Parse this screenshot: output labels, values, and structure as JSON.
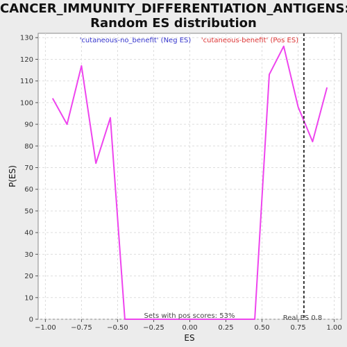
{
  "chart_data": {
    "type": "line",
    "title_lines": [
      "CANCER_IMMUNITY_DIFFERENTIATION_ANTIGENS:",
      "Random ES distribution"
    ],
    "xlabel": "ES",
    "ylabel": "P(ES)",
    "xlim": [
      -1.05,
      1.05
    ],
    "ylim": [
      0,
      132
    ],
    "xticks": [
      -1.0,
      -0.75,
      -0.5,
      -0.25,
      0.0,
      0.25,
      0.5,
      0.75,
      1.0
    ],
    "xtick_labels": [
      "−1.00",
      "−0.75",
      "−0.50",
      "−0.25",
      "0.00",
      "0.25",
      "0.50",
      "0.75",
      "1.00"
    ],
    "yticks": [
      0,
      10,
      20,
      30,
      40,
      50,
      60,
      70,
      80,
      90,
      100,
      110,
      120,
      130
    ],
    "ytick_labels": [
      "0",
      "10",
      "20",
      "30",
      "40",
      "50",
      "60",
      "70",
      "80",
      "90",
      "100",
      "110",
      "120",
      "130"
    ],
    "grid": true,
    "series": [
      {
        "color": "#ee44ee",
        "x": [
          -0.95,
          -0.85,
          -0.75,
          -0.65,
          -0.55,
          -0.45,
          0.45,
          0.55,
          0.65,
          0.75,
          0.85,
          0.95
        ],
        "y": [
          102,
          90,
          117,
          72,
          93,
          0,
          0,
          113,
          126,
          98,
          82,
          107
        ]
      }
    ],
    "real_es": 0.79,
    "neg_label": "'cutaneous-no_benefit' (Neg ES)",
    "pos_label": "'cutaneous-benefit' (Pos ES)",
    "neg_color": "#3333cc",
    "pos_color": "#dd3333",
    "pos_scores_text": "Sets with pos scores: 53%",
    "real_es_text": "Real ES 0.8"
  }
}
